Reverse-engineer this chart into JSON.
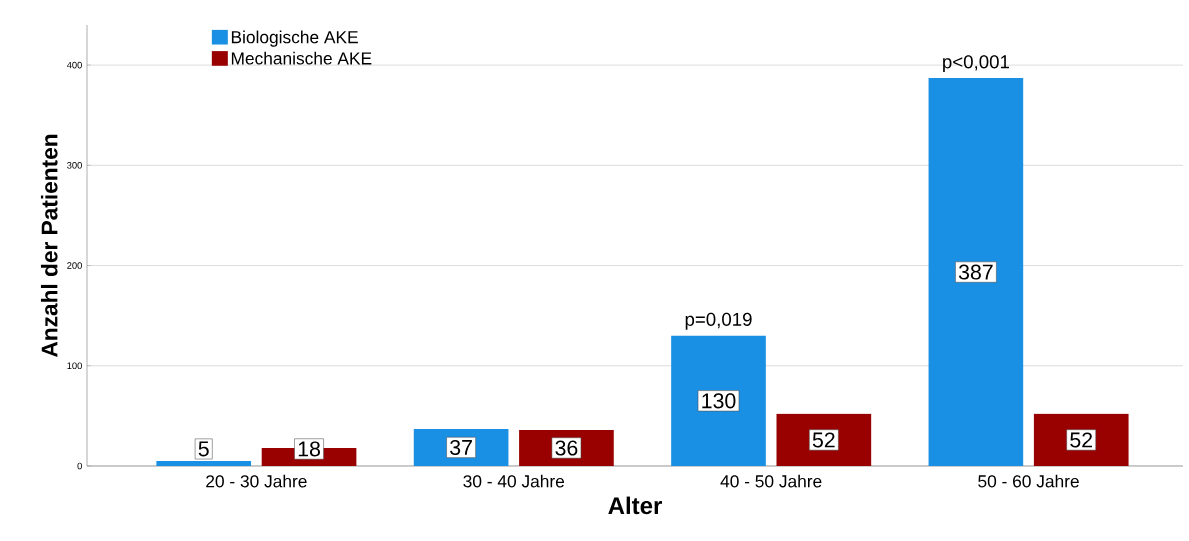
{
  "chart_data": {
    "type": "bar",
    "xlabel": "Alter",
    "ylabel": "Anzahl der Patienten",
    "categories": [
      "20 - 30 Jahre",
      "30 - 40 Jahre",
      "40 - 50 Jahre",
      "50 - 60 Jahre"
    ],
    "series": [
      {
        "name": "Biologische AKE",
        "color": "#1a90e4",
        "values": [
          5,
          37,
          130,
          387
        ]
      },
      {
        "name": "Mechanische AKE",
        "color": "#990000",
        "values": [
          18,
          36,
          52,
          52
        ]
      }
    ],
    "ylim": [
      0,
      440
    ],
    "yticks": [
      0,
      100,
      200,
      300,
      400
    ],
    "grid": "y",
    "legend": "top left",
    "data_labels": true,
    "annotations": [
      "p=0,019",
      "p<0,001"
    ]
  }
}
